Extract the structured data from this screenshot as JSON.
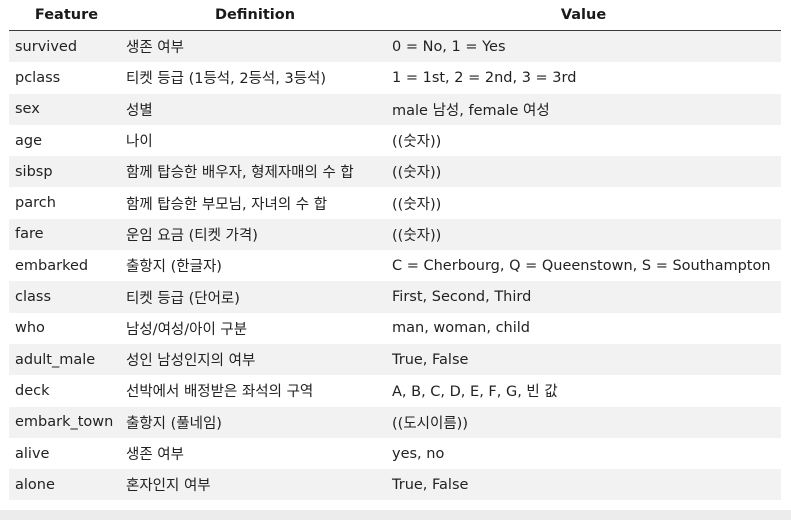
{
  "table": {
    "headers": [
      "Feature",
      "Definition",
      "Value"
    ],
    "rows": [
      [
        "survived",
        "생존 여부",
        "0 = No, 1 = Yes"
      ],
      [
        "pclass",
        "티켓 등급 (1등석, 2등석, 3등석)",
        "1 = 1st, 2 = 2nd, 3 = 3rd"
      ],
      [
        "sex",
        "성별",
        "male 남성, female 여성"
      ],
      [
        "age",
        "나이",
        "((숫자))"
      ],
      [
        "sibsp",
        "함께 탑승한 배우자, 형제자매의 수 합",
        "((숫자))"
      ],
      [
        "parch",
        "함께 탑승한 부모님, 자녀의 수 합",
        "((숫자))"
      ],
      [
        "fare",
        "운임 요금 (티켓 가격)",
        "((숫자))"
      ],
      [
        "embarked",
        "출항지 (한글자)",
        "C = Cherbourg, Q = Queenstown, S = Southampton"
      ],
      [
        "class",
        "티켓 등급 (단어로)",
        "First, Second, Third"
      ],
      [
        "who",
        "남성/여성/아이 구분",
        "man, woman, child"
      ],
      [
        "adult_male",
        "성인 남성인지의 여부",
        "True, False"
      ],
      [
        "deck",
        "선박에서 배정받은 좌석의 구역",
        "A, B, C, D, E, F, G, 빈 값"
      ],
      [
        "embark_town",
        "출항지 (풀네임)",
        "((도시이름))"
      ],
      [
        "alive",
        "생존 여부",
        "yes, no"
      ],
      [
        "alone",
        "혼자인지 여부",
        "True, False"
      ]
    ]
  }
}
